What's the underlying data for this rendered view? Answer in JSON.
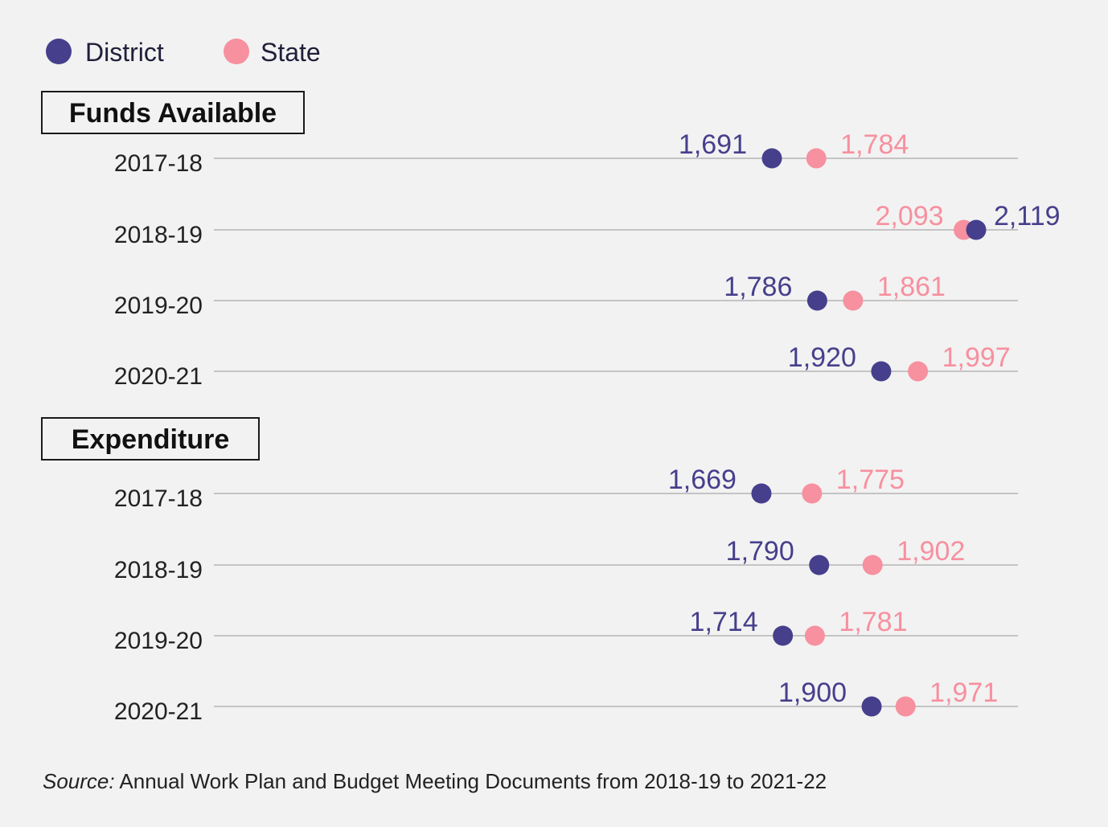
{
  "colors": {
    "district": "#463f8c",
    "state": "#f7909f",
    "background": "#f2f2f2"
  },
  "legend": [
    {
      "key": "district",
      "label": "District"
    },
    {
      "key": "state",
      "label": "State"
    }
  ],
  "source": {
    "prefix": "Source:",
    "text": " Annual Work Plan and Budget Meeting Documents from 2018-19 to 2021-22"
  },
  "chart_data": {
    "type": "scatter",
    "subtype": "dot-plot",
    "x_scale": {
      "reference_values": [
        1691,
        2119
      ]
    },
    "series": [
      {
        "key": "district",
        "name": "District"
      },
      {
        "key": "state",
        "name": "State"
      }
    ],
    "panels": [
      {
        "title": "Funds Available",
        "rows": [
          {
            "label": "2017-18",
            "district": 1691,
            "state": 1784,
            "district_text": "1,691",
            "state_text": "1,784"
          },
          {
            "label": "2018-19",
            "district": 2119,
            "state": 2093,
            "district_text": "2,119",
            "state_text": "2,093"
          },
          {
            "label": "2019-20",
            "district": 1786,
            "state": 1861,
            "district_text": "1,786",
            "state_text": "1,861"
          },
          {
            "label": "2020-21",
            "district": 1920,
            "state": 1997,
            "district_text": "1,920",
            "state_text": "1,997"
          }
        ]
      },
      {
        "title": "Expenditure",
        "rows": [
          {
            "label": "2017-18",
            "district": 1669,
            "state": 1775,
            "district_text": "1,669",
            "state_text": "1,775"
          },
          {
            "label": "2018-19",
            "district": 1790,
            "state": 1902,
            "district_text": "1,790",
            "state_text": "1,902"
          },
          {
            "label": "2019-20",
            "district": 1714,
            "state": 1781,
            "district_text": "1,714",
            "state_text": "1,781"
          },
          {
            "label": "2020-21",
            "district": 1900,
            "state": 1971,
            "district_text": "1,900",
            "state_text": "1,971"
          }
        ]
      }
    ]
  }
}
